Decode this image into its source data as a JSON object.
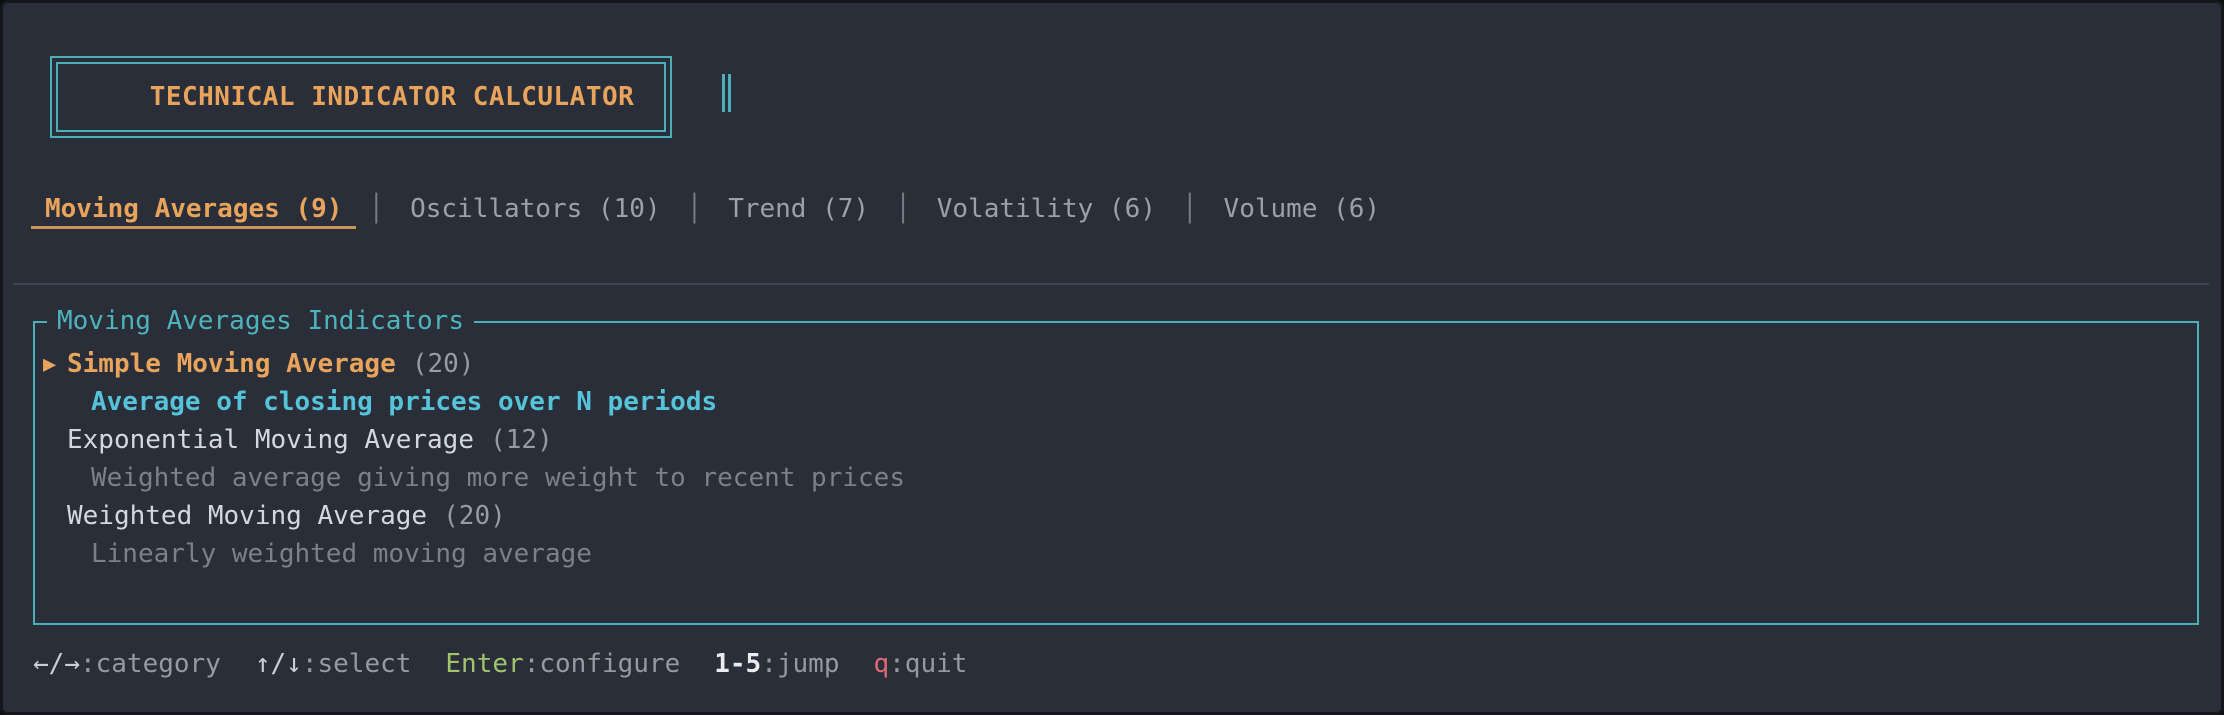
{
  "colors": {
    "bg": "#2a2e38",
    "border-teal": "#4aafb8",
    "accent-orange": "#e8a45c",
    "cyan": "#55c3d9",
    "text-light": "#d4d8de",
    "text-gray": "#959ca6",
    "text-dim": "#7a8189",
    "tab-inactive": "#9aa1ab",
    "separator": "#757c86",
    "green": "#a2c36e",
    "red": "#df6a77",
    "white": "#e9ecef",
    "divider": "#3a434e"
  },
  "header": {
    "title": "TECHNICAL INDICATOR CALCULATOR"
  },
  "tabs": [
    {
      "label": "Moving Averages (9)",
      "active": true
    },
    {
      "label": "Oscillators (10)",
      "active": false
    },
    {
      "label": "Trend (7)",
      "active": false
    },
    {
      "label": "Volatility (6)",
      "active": false
    },
    {
      "label": "Volume (6)",
      "active": false
    }
  ],
  "tab_separator": "│",
  "panel": {
    "title": "Moving Averages Indicators",
    "selection_marker": "▶",
    "items": [
      {
        "selected": true,
        "name": "Simple Moving Average",
        "period": "(20)",
        "description": "Average of closing prices over N periods"
      },
      {
        "selected": false,
        "name": "Exponential Moving Average",
        "period": "(12)",
        "description": "Weighted average giving more weight to recent prices"
      },
      {
        "selected": false,
        "name": "Weighted Moving Average",
        "period": "(20)",
        "description": "Linearly weighted moving average"
      }
    ]
  },
  "footer": {
    "shortcuts": [
      {
        "key": "←/→",
        "label": ":category"
      },
      {
        "key": "↑/↓",
        "label": ":select"
      },
      {
        "key": "Enter",
        "label": ":configure"
      },
      {
        "key": "1-5",
        "label": ":jump"
      },
      {
        "key": "q",
        "label": ":quit"
      }
    ]
  }
}
